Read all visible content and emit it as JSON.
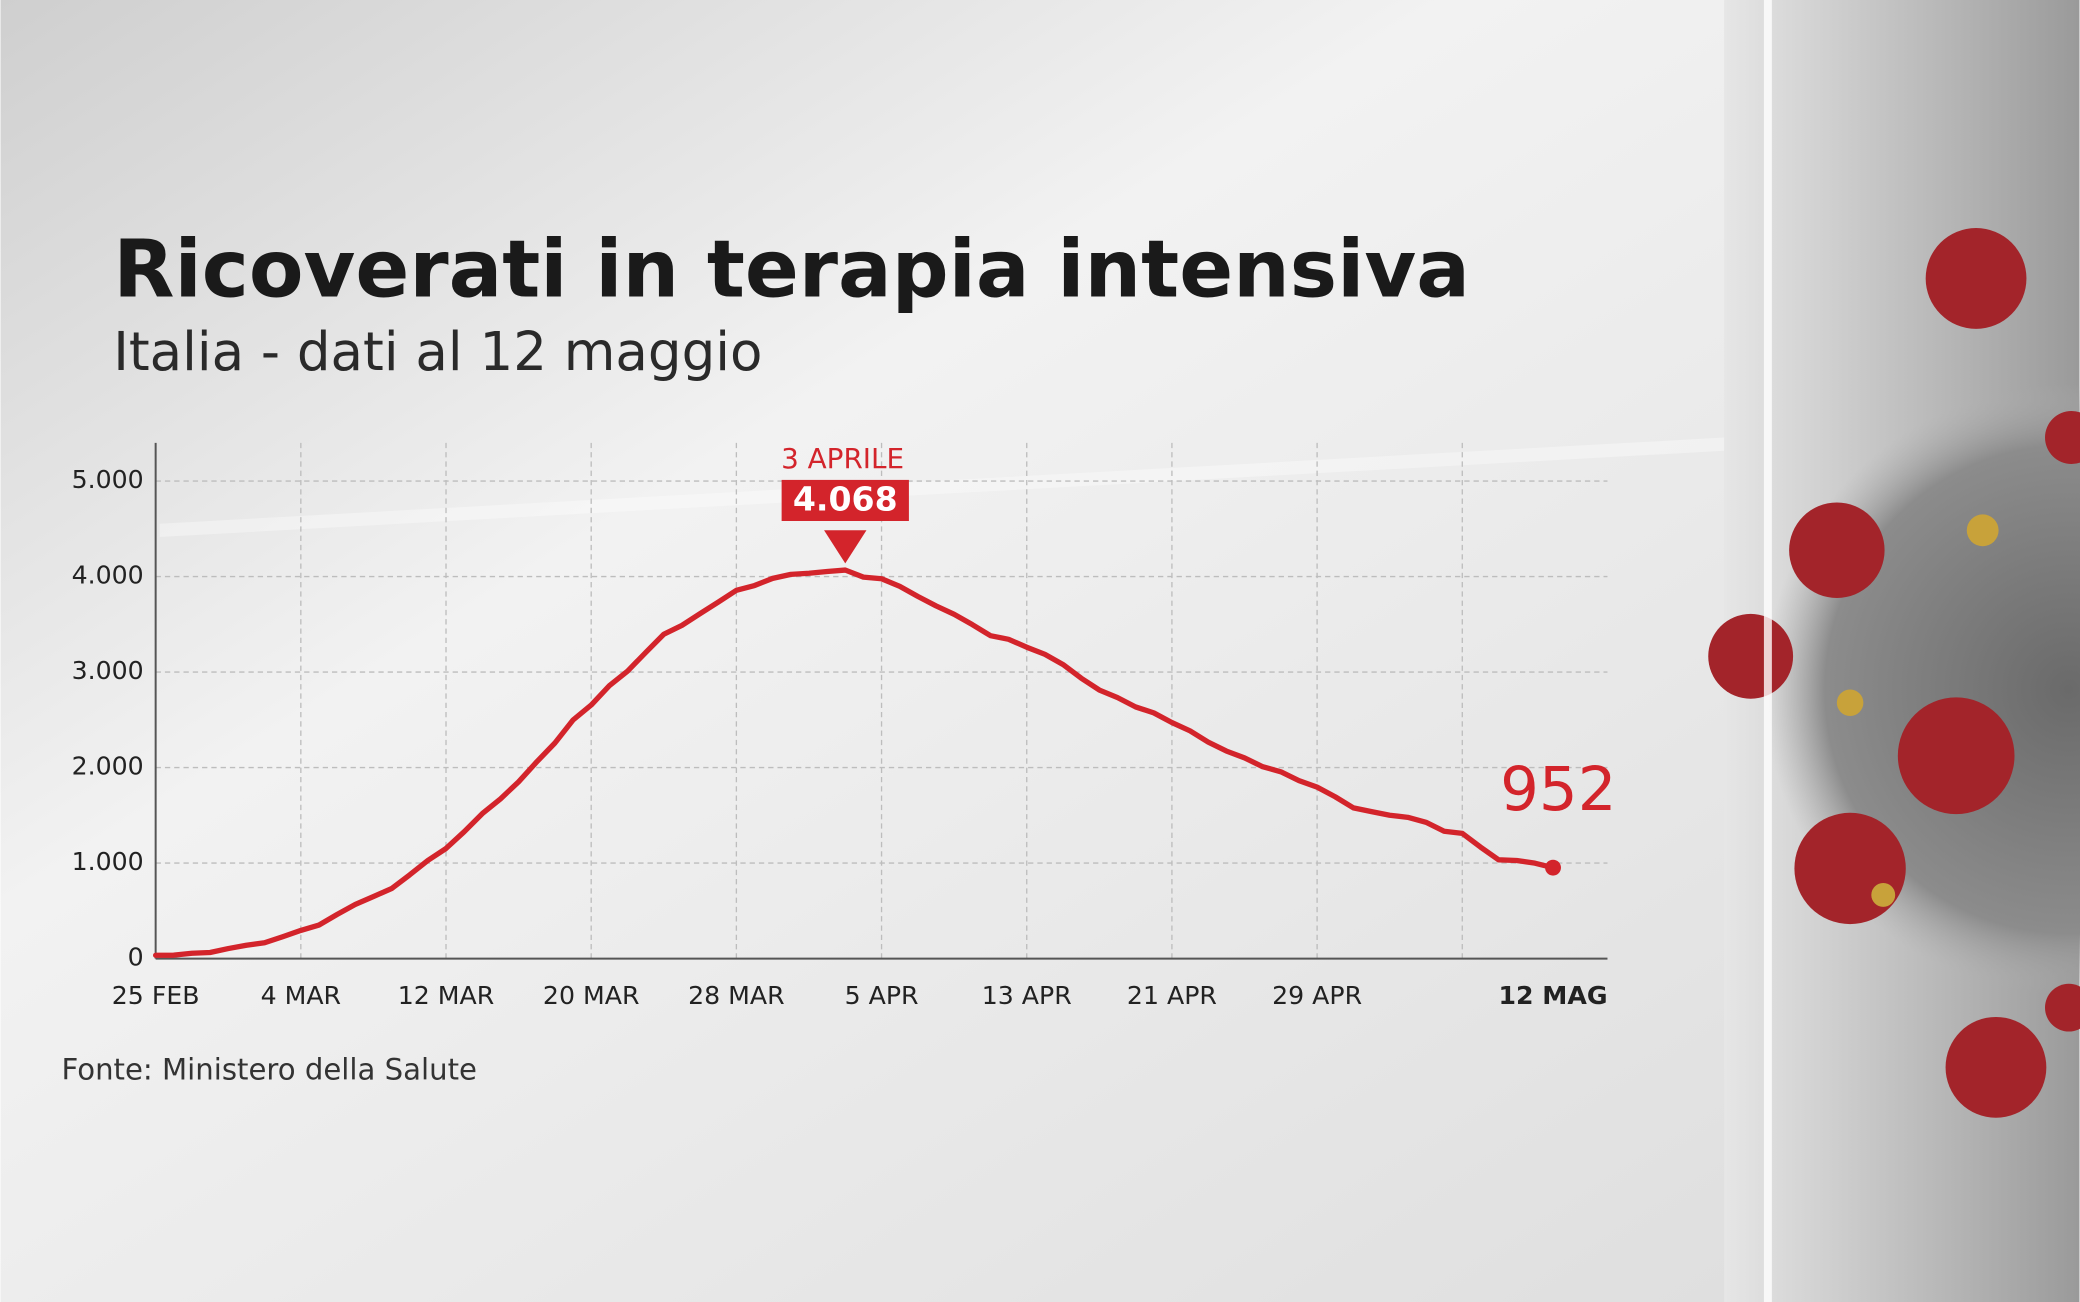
{
  "chart_data": {
    "type": "line",
    "title": "Ricoverati in terapia intensiva",
    "subtitle": "Italia - dati al 12 maggio",
    "source": "Fonte: Ministero della Salute",
    "peak_label": "3 APRILE",
    "color": "#d3242b",
    "grid": true,
    "ylim": [
      0,
      5400
    ],
    "yticks": [
      0,
      {
        "value": 1000,
        "label": "1.000"
      },
      {
        "value": 2000,
        "label": "2.000"
      },
      {
        "value": 3000,
        "label": "3.000"
      },
      {
        "value": 4000,
        "label": "4.000"
      },
      {
        "value": 5000,
        "label": "5.000"
      }
    ],
    "categories": [
      "25 FEB",
      null,
      null,
      null,
      null,
      null,
      null,
      null,
      "4 MAR",
      null,
      null,
      null,
      null,
      null,
      null,
      null,
      "12 MAR",
      null,
      null,
      null,
      null,
      null,
      null,
      null,
      "20 MAR",
      null,
      null,
      null,
      null,
      null,
      null,
      null,
      "28 MAR",
      null,
      null,
      null,
      null,
      null,
      null,
      null,
      "5 APR",
      null,
      null,
      null,
      null,
      null,
      null,
      null,
      "13 APR",
      null,
      null,
      null,
      null,
      null,
      null,
      null,
      "21 APR",
      null,
      null,
      null,
      null,
      null,
      null,
      null,
      "29 APR",
      null,
      null,
      null,
      null,
      null,
      null,
      null,
      null,
      null,
      null,
      null,
      null,
      "12 MAG"
    ],
    "values": [
      35,
      36,
      56,
      64,
      105,
      140,
      166,
      229,
      295,
      351,
      462,
      567,
      650,
      733,
      877,
      1028,
      1153,
      1328,
      1518,
      1672,
      1851,
      2060,
      2257,
      2498,
      2655,
      2857,
      3009,
      3204,
      3396,
      3489,
      3612,
      3732,
      3856,
      3906,
      3981,
      4023,
      4035,
      4053,
      4068,
      3994,
      3977,
      3898,
      3792,
      3693,
      3605,
      3497,
      3381,
      3343,
      3260,
      3186,
      3079,
      2936,
      2812,
      2733,
      2635,
      2573,
      2471,
      2384,
      2267,
      2173,
      2102,
      2009,
      1956,
      1863,
      1795,
      1694,
      1578,
      1539,
      1501,
      1479,
      1427,
      1333,
      1311,
      1168,
      1034,
      1027,
      999,
      952
    ],
    "value_labels": [
      null,
      null,
      null,
      null,
      null,
      null,
      null,
      null,
      null,
      null,
      null,
      null,
      null,
      null,
      null,
      null,
      null,
      null,
      null,
      null,
      null,
      null,
      null,
      null,
      null,
      null,
      null,
      null,
      null,
      null,
      null,
      null,
      null,
      null,
      null,
      null,
      null,
      null,
      "4.068",
      null,
      null,
      null,
      null,
      null,
      null,
      null,
      null,
      null,
      null,
      null,
      null,
      null,
      null,
      null,
      null,
      null,
      null,
      null,
      null,
      null,
      null,
      null,
      null,
      null,
      null,
      null,
      null,
      null,
      null,
      null,
      null,
      null,
      null,
      null,
      null,
      null,
      null,
      null
    ]
  }
}
